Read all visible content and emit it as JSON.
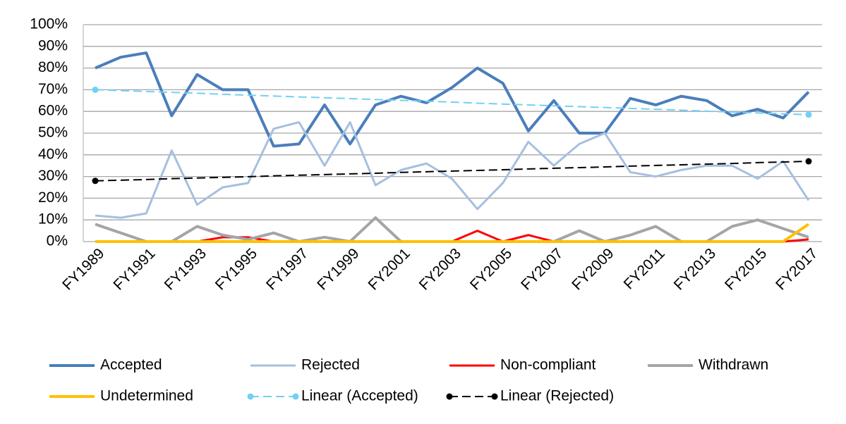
{
  "chart_data": {
    "type": "line",
    "categories": [
      "FY1989",
      null,
      "FY1991",
      null,
      "FY1993",
      null,
      "FY1995",
      null,
      "FY1997",
      null,
      "FY1999",
      null,
      "FY2001",
      null,
      "FY2003",
      null,
      "FY2005",
      null,
      "FY2007",
      null,
      "FY2009",
      null,
      "FY2011",
      null,
      "FY2013",
      null,
      "FY2015",
      null,
      "FY2017"
    ],
    "ylim": [
      0,
      100
    ],
    "yticks": [
      {
        "value": 0,
        "label": "0%"
      },
      {
        "value": 10,
        "label": "10%"
      },
      {
        "value": 20,
        "label": "20%"
      },
      {
        "value": 30,
        "label": "30%"
      },
      {
        "value": 40,
        "label": "40%"
      },
      {
        "value": 50,
        "label": "50%"
      },
      {
        "value": 60,
        "label": "60%"
      },
      {
        "value": 70,
        "label": "70%"
      },
      {
        "value": 80,
        "label": "80%"
      },
      {
        "value": 90,
        "label": "90%"
      },
      {
        "value": 100,
        "label": "100%"
      }
    ],
    "grid": true,
    "legend": "bottom",
    "series": [
      {
        "name": "Accepted",
        "color": "#4a7ebb",
        "width": 4,
        "values": [
          80,
          85,
          87,
          58,
          77,
          70,
          70,
          44,
          45,
          63,
          45,
          63,
          67,
          64,
          71,
          80,
          73,
          51,
          65,
          50,
          50,
          66,
          63,
          67,
          65,
          58,
          61,
          57,
          69
        ]
      },
      {
        "name": "Rejected",
        "color": "#a6bfe0",
        "width": 3,
        "values": [
          12,
          11,
          13,
          42,
          17,
          25,
          27,
          52,
          55,
          35,
          55,
          26,
          33,
          36,
          29,
          15,
          27,
          46,
          35,
          45,
          50,
          32,
          30,
          33,
          35,
          35,
          29,
          37,
          19
        ]
      },
      {
        "name": "Non-compliant",
        "color": "#ff0000",
        "width": 3,
        "values": [
          0,
          0,
          0,
          0,
          0,
          2,
          2,
          0,
          0,
          0,
          0,
          0,
          0,
          0,
          0,
          5,
          0,
          3,
          0,
          0,
          0,
          0,
          0,
          0,
          0,
          0,
          0,
          0,
          1
        ]
      },
      {
        "name": "Withdrawn",
        "color": "#a5a5a5",
        "width": 4,
        "values": [
          8,
          4,
          0,
          0,
          7,
          3,
          1,
          4,
          0,
          2,
          0,
          11,
          0,
          0,
          0,
          0,
          0,
          0,
          0,
          5,
          0,
          3,
          7,
          0,
          0,
          7,
          10,
          6,
          2
        ]
      },
      {
        "name": "Undetermined",
        "color": "#ffc000",
        "width": 4,
        "values": [
          0,
          0,
          0,
          0,
          0,
          0,
          0,
          0,
          0,
          0,
          0,
          0,
          0,
          0,
          0,
          0,
          0,
          0,
          0,
          0,
          0,
          0,
          0,
          0,
          0,
          0,
          0,
          0,
          8
        ]
      },
      {
        "name": "Linear (Accepted)",
        "color": "#72d0f4",
        "width": 2,
        "dashed": true,
        "end_markers": true,
        "values": [
          70,
          69.6,
          69.2,
          68.8,
          68.4,
          67.9,
          67.5,
          67.1,
          66.7,
          66.3,
          65.9,
          65.5,
          65.1,
          64.7,
          64.3,
          63.8,
          63.4,
          63.0,
          62.6,
          62.2,
          61.8,
          61.4,
          61.0,
          60.6,
          60.1,
          59.7,
          59.3,
          58.9,
          58.5
        ]
      },
      {
        "name": "Linear (Rejected)",
        "color": "#000000",
        "width": 2,
        "dashed": true,
        "end_markers": true,
        "values": [
          28,
          28.3,
          28.6,
          29.0,
          29.3,
          29.6,
          29.9,
          30.3,
          30.6,
          30.9,
          31.2,
          31.5,
          31.9,
          32.2,
          32.5,
          32.8,
          33.1,
          33.5,
          33.8,
          34.1,
          34.4,
          34.8,
          35.1,
          35.4,
          35.7,
          36.0,
          36.4,
          36.7,
          37.0
        ]
      }
    ]
  }
}
